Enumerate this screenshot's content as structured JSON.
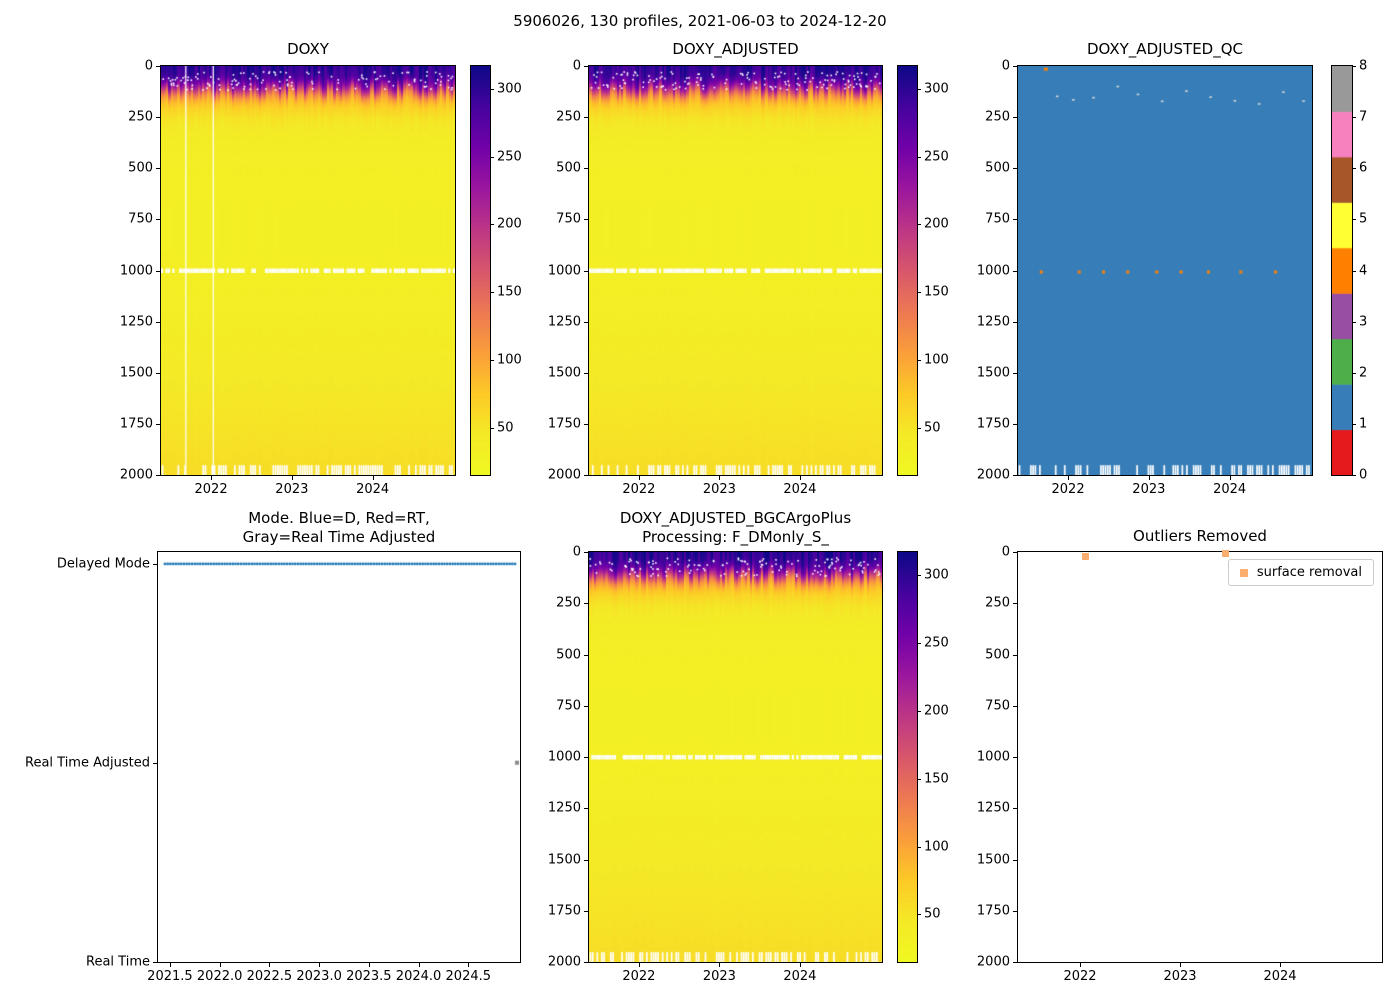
{
  "figure": {
    "suptitle": "5906026, 130 profiles, 2021-06-03 to 2024-12-20",
    "background": "#ffffff"
  },
  "colors": {
    "heat_cmap": [
      [
        0.0,
        13,
        8,
        135
      ],
      [
        0.1,
        70,
        3,
        159
      ],
      [
        0.2,
        114,
        1,
        168
      ],
      [
        0.3,
        156,
        23,
        158
      ],
      [
        0.4,
        189,
        55,
        134
      ],
      [
        0.5,
        216,
        87,
        107
      ],
      [
        0.6,
        237,
        121,
        83
      ],
      [
        0.7,
        250,
        158,
        59
      ],
      [
        0.8,
        253,
        202,
        38
      ],
      [
        0.9,
        244,
        234,
        38
      ],
      [
        1.0,
        240,
        249,
        33
      ]
    ],
    "qc_palette": [
      "#e41a1c",
      "#377eb8",
      "#4daf4a",
      "#984ea3",
      "#ff7f00",
      "#ffff33",
      "#a65628",
      "#f781bf",
      "#999999"
    ],
    "mode_dot": "#1f77b4",
    "rta_marker": "#8a8a8a",
    "outlier_marker": "#fcae6e",
    "speck_light": "#d9d9d9",
    "gap_white": "#ffffff"
  },
  "chart_data": [
    {
      "type": "heatmap",
      "title": "DOXY",
      "seed": 11,
      "profiles_count": 130,
      "x_range": [
        2021.38,
        2025.02
      ],
      "x_ticks": [
        2022,
        2023,
        2024
      ],
      "depth_range": [
        0,
        2000
      ],
      "y_ticks": [
        0,
        250,
        500,
        750,
        1000,
        1250,
        1500,
        1750,
        2000
      ],
      "colorbar": {
        "vmin": 15,
        "vmax": 317,
        "ticks": [
          50,
          100,
          150,
          200,
          250,
          300
        ]
      },
      "profile": {
        "depths": [
          0,
          40,
          70,
          90,
          110,
          130,
          150,
          175,
          210,
          260,
          350,
          500,
          700,
          900,
          1100,
          1400,
          1700,
          2000
        ],
        "values": [
          300,
          292,
          268,
          235,
          195,
          148,
          110,
          85,
          65,
          50,
          40,
          36,
          34,
          34,
          36,
          42,
          50,
          58
        ]
      },
      "gap_depth": 1000,
      "bottom_marks_depth": 1952,
      "missing_profile_lines": [
        2021.68,
        2022.02
      ]
    },
    {
      "type": "heatmap",
      "title": "DOXY_ADJUSTED",
      "seed": 22,
      "profiles_count": 130,
      "x_range": [
        2021.38,
        2025.02
      ],
      "x_ticks": [
        2022,
        2023,
        2024
      ],
      "depth_range": [
        0,
        2000
      ],
      "y_ticks": [
        0,
        250,
        500,
        750,
        1000,
        1250,
        1500,
        1750,
        2000
      ],
      "colorbar": {
        "vmin": 15,
        "vmax": 317,
        "ticks": [
          50,
          100,
          150,
          200,
          250,
          300
        ]
      },
      "profile": {
        "depths": [
          0,
          40,
          70,
          90,
          110,
          130,
          150,
          175,
          210,
          260,
          350,
          500,
          700,
          900,
          1100,
          1400,
          1700,
          2000
        ],
        "values": [
          300,
          292,
          268,
          235,
          195,
          148,
          110,
          85,
          65,
          50,
          40,
          36,
          34,
          34,
          36,
          42,
          50,
          58
        ]
      },
      "gap_depth": 1000,
      "bottom_marks_depth": 1952,
      "missing_profile_lines": []
    },
    {
      "type": "qc-heatmap",
      "title": "DOXY_ADJUSTED_QC",
      "seed": 33,
      "profiles_count": 130,
      "x_range": [
        2021.38,
        2025.02
      ],
      "x_ticks": [
        2022,
        2023,
        2024
      ],
      "depth_range": [
        0,
        2000
      ],
      "y_ticks": [
        0,
        250,
        500,
        750,
        1000,
        1250,
        1500,
        1750,
        2000
      ],
      "fill_qc_value": 1,
      "colorbar": {
        "ticks": [
          0,
          1,
          2,
          3,
          4,
          5,
          6,
          7,
          8
        ]
      },
      "mid_specks": {
        "depth": 1000,
        "qc_value": 4,
        "x": [
          2021.65,
          2022.12,
          2022.42,
          2022.72,
          2023.08,
          2023.38,
          2023.72,
          2024.12,
          2024.55
        ]
      },
      "top_specks": {
        "depth_min": 95,
        "depth_max": 185,
        "x": [
          2021.85,
          2022.05,
          2022.3,
          2022.6,
          2022.85,
          2023.15,
          2023.45,
          2023.75,
          2024.05,
          2024.35,
          2024.65,
          2024.9
        ]
      },
      "surface_speck": {
        "x": 2021.7,
        "depth": 8,
        "qc_value": 4
      },
      "bottom_marks_depth": 1952
    },
    {
      "type": "mode-scatter",
      "title": "Mode. Blue=D, Red=RT,\nGray=Real Time Adjusted",
      "seed": 44,
      "x_range": [
        2021.38,
        2025.02
      ],
      "x_ticks": [
        "2021.5",
        "2022.0",
        "2022.5",
        "2023.0",
        "2023.5",
        "2024.0",
        "2024.5"
      ],
      "y_categories": [
        "Delayed Mode",
        "Real Time Adjusted",
        "Real Time"
      ],
      "series": [
        {
          "name": "Delayed Mode",
          "count": 130,
          "x_start": 2021.45,
          "x_end": 2024.97,
          "y_category": "Delayed Mode"
        }
      ],
      "extra_points": [
        {
          "x": 2024.99,
          "y_category": "Real Time Adjusted"
        }
      ]
    },
    {
      "type": "heatmap",
      "title": "DOXY_ADJUSTED_BGCArgoPlus\nProcessing: F_DMonly_S_",
      "seed": 55,
      "profiles_count": 130,
      "x_range": [
        2021.38,
        2025.02
      ],
      "x_ticks": [
        2022,
        2023,
        2024
      ],
      "depth_range": [
        0,
        2000
      ],
      "y_ticks": [
        0,
        250,
        500,
        750,
        1000,
        1250,
        1500,
        1750,
        2000
      ],
      "colorbar": {
        "vmin": 15,
        "vmax": 317,
        "ticks": [
          50,
          100,
          150,
          200,
          250,
          300
        ]
      },
      "profile": {
        "depths": [
          0,
          40,
          70,
          90,
          110,
          130,
          150,
          175,
          210,
          260,
          350,
          500,
          700,
          900,
          1100,
          1400,
          1700,
          2000
        ],
        "values": [
          300,
          292,
          268,
          235,
          195,
          148,
          110,
          85,
          65,
          50,
          40,
          36,
          34,
          34,
          36,
          42,
          50,
          58
        ]
      },
      "gap_depth": 1000,
      "bottom_marks_depth": 1952,
      "missing_profile_lines": []
    },
    {
      "type": "outlier-scatter",
      "title": "Outliers Removed",
      "seed": 66,
      "x_range": [
        2021.38,
        2025.02
      ],
      "x_ticks": [
        2022,
        2023,
        2024
      ],
      "depth_range": [
        0,
        2000
      ],
      "y_ticks": [
        0,
        250,
        500,
        750,
        1000,
        1250,
        1500,
        1750,
        2000
      ],
      "legend": [
        {
          "label": "surface removal"
        }
      ],
      "points": [
        {
          "x": 2022.05,
          "depth": 20
        },
        {
          "x": 2023.45,
          "depth": 6
        }
      ]
    }
  ]
}
